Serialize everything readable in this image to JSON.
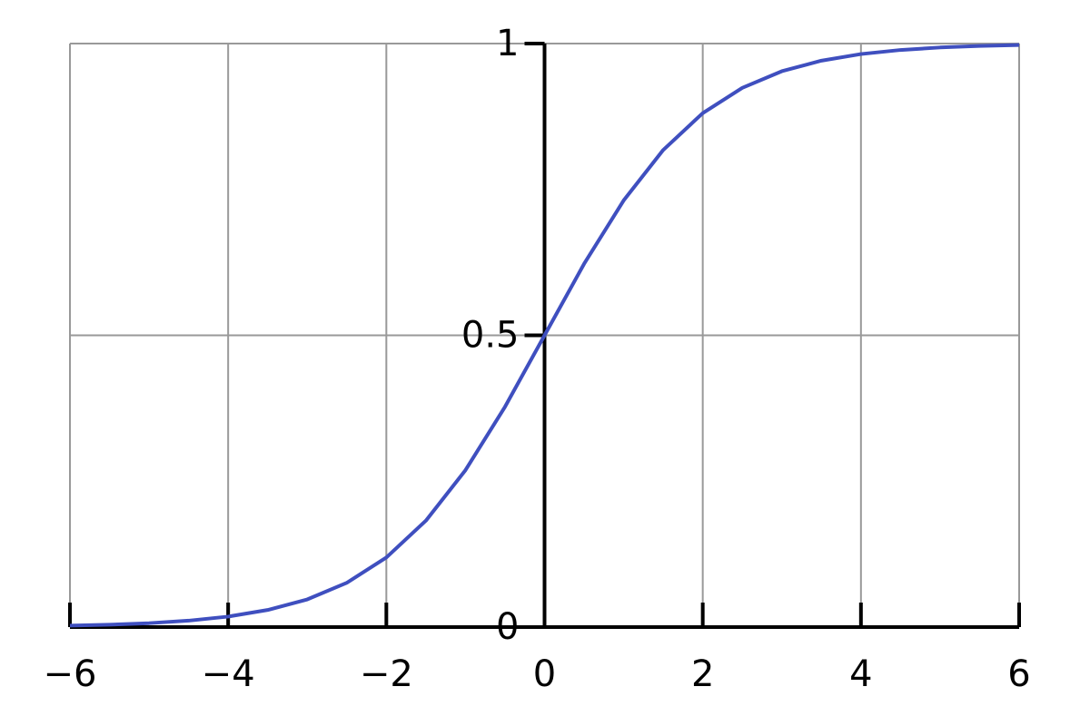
{
  "chart_data": {
    "type": "line",
    "x": [
      -6,
      -5.5,
      -5,
      -4.5,
      -4,
      -3.5,
      -3,
      -2.5,
      -2,
      -1.5,
      -1,
      -0.5,
      0,
      0.5,
      1,
      1.5,
      2,
      2.5,
      3,
      3.5,
      4,
      4.5,
      5,
      5.5,
      6
    ],
    "values": [
      0.0025,
      0.0041,
      0.0067,
      0.011,
      0.018,
      0.0293,
      0.0474,
      0.0759,
      0.1192,
      0.1824,
      0.2689,
      0.3775,
      0.5,
      0.6225,
      0.7311,
      0.8176,
      0.8808,
      0.9241,
      0.9526,
      0.9707,
      0.982,
      0.989,
      0.9933,
      0.9959,
      0.9975
    ],
    "color": "#3f4fbf",
    "xlim": [
      -6,
      6
    ],
    "ylim": [
      0,
      1
    ],
    "xticks": [
      {
        "value": -6,
        "label": "−6"
      },
      {
        "value": -4,
        "label": "−4"
      },
      {
        "value": -2,
        "label": "−2"
      },
      0,
      2,
      4,
      6
    ],
    "yticks": [
      0,
      0.5,
      1
    ],
    "grid": true
  }
}
